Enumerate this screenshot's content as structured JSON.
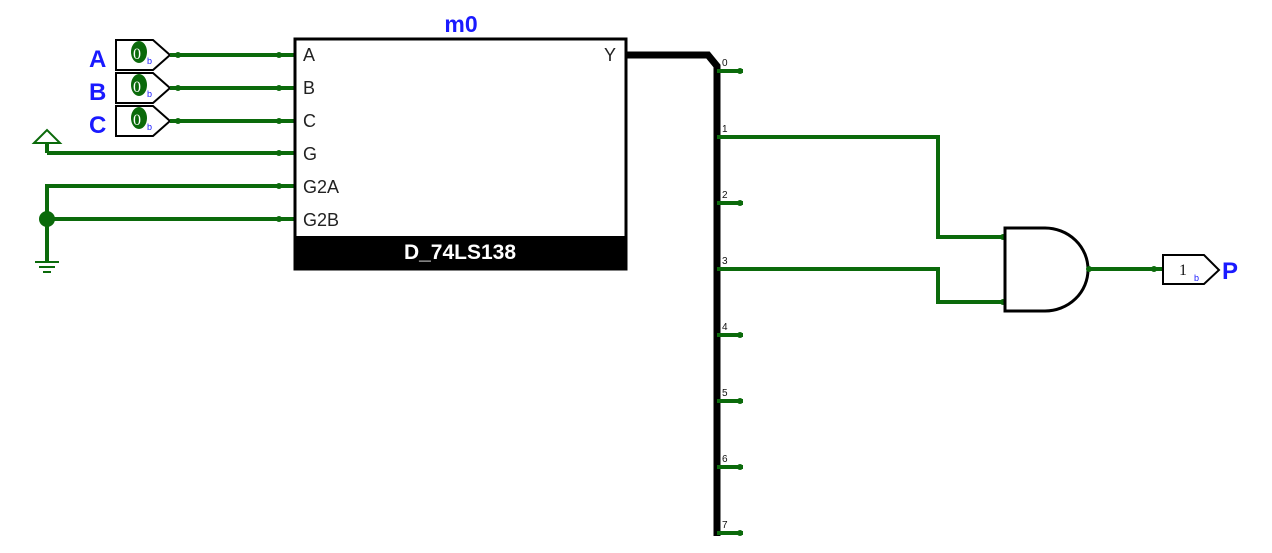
{
  "chip": {
    "instance_label": "m0",
    "type_label": "D_74LS138",
    "input_pins": [
      "A",
      "B",
      "C",
      "G",
      "G2A",
      "G2B"
    ],
    "output_pin": "Y"
  },
  "inputs": [
    {
      "label": "A",
      "value": "0",
      "radix": "b"
    },
    {
      "label": "B",
      "value": "0",
      "radix": "b"
    },
    {
      "label": "C",
      "value": "0",
      "radix": "b"
    }
  ],
  "splitter_bits": [
    "0",
    "1",
    "2",
    "3",
    "4",
    "5",
    "6",
    "7"
  ],
  "output_probe": {
    "label": "P",
    "value": "1",
    "radix": "b"
  },
  "colors": {
    "wire": "#0b6a0b",
    "bus": "#000000",
    "label": "#1a1aff",
    "chip_band": "#000000"
  }
}
